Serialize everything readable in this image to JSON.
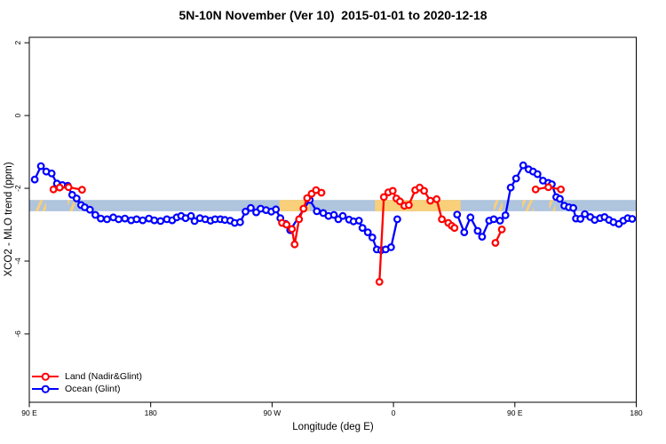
{
  "chart_data": {
    "type": "line",
    "title": "5N-10N November (Ver 10)  2015-01-01 to 2020-12-18",
    "xlabel": "Longitude (deg E)",
    "ylabel": "XCO2 - MLO trend (ppm)",
    "xlim": [
      90,
      540
    ],
    "ylim": [
      -7.88,
      2.15
    ],
    "grid": false,
    "legend_position": "bottom-left",
    "x_ticks": [
      {
        "pos": 90,
        "label": "90 E"
      },
      {
        "pos": 180,
        "label": "180"
      },
      {
        "pos": 270,
        "label": "90 W"
      },
      {
        "pos": 360,
        "label": "0"
      },
      {
        "pos": 450,
        "label": "90 E"
      },
      {
        "pos": 540,
        "label": "180"
      }
    ],
    "y_ticks": [
      {
        "pos": 2,
        "label": "2"
      },
      {
        "pos": 0,
        "label": "0"
      },
      {
        "pos": -2,
        "label": "-2"
      },
      {
        "pos": -4,
        "label": "-4"
      },
      {
        "pos": -6,
        "label": "-6"
      }
    ],
    "band": {
      "y0": -2.63,
      "y1": -2.32,
      "color": "#afc4dd"
    },
    "highlight_patches": {
      "color": "#f9cf7a",
      "ranges": [
        {
          "x0": 94.6,
          "x1": 102.6,
          "style": "hatch"
        },
        {
          "x0": 118.5,
          "x1": 123.8,
          "style": "hatch"
        },
        {
          "x0": 275.4,
          "x1": 297.9,
          "style": "solid"
        },
        {
          "x0": 346.3,
          "x1": 409.8,
          "style": "solid"
        },
        {
          "x0": 434.3,
          "x1": 440.9,
          "style": "hatch"
        },
        {
          "x0": 455.5,
          "x1": 464.1,
          "style": "hatch"
        },
        {
          "x0": 475.4,
          "x1": 480.1,
          "style": "hatch"
        }
      ]
    },
    "series": [
      {
        "name": "Land (Nadir&Glint)",
        "color": "#ff0000",
        "segments": [
          [
            [
              107.9,
              -2.03
            ],
            [
              112.5,
              -1.98
            ],
            [
              119.1,
              -1.97
            ],
            [
              129.1,
              -2.04
            ]
          ],
          [
            [
              277.4,
              -2.95
            ],
            [
              280.7,
              -3.0
            ],
            [
              284.7,
              -3.12
            ],
            [
              286.7,
              -3.54
            ],
            [
              290.0,
              -2.85
            ],
            [
              293.3,
              -2.56
            ],
            [
              296.0,
              -2.27
            ],
            [
              299.3,
              -2.15
            ],
            [
              302.6,
              -2.05
            ],
            [
              306.6,
              -2.12
            ]
          ],
          [
            [
              349.6,
              -4.57
            ],
            [
              352.9,
              -2.24
            ],
            [
              356.2,
              -2.11
            ],
            [
              359.5,
              -2.07
            ],
            [
              362.2,
              -2.28
            ],
            [
              364.8,
              -2.36
            ],
            [
              368.1,
              -2.48
            ],
            [
              371.4,
              -2.46
            ],
            [
              376.1,
              -2.05
            ],
            [
              379.4,
              -1.98
            ],
            [
              382.7,
              -2.07
            ],
            [
              387.3,
              -2.34
            ],
            [
              392.0,
              -2.3
            ],
            [
              395.9,
              -2.85
            ],
            [
              400.6,
              -2.95
            ],
            [
              403.2,
              -3.03
            ],
            [
              405.2,
              -3.09
            ]
          ],
          [
            [
              435.6,
              -3.5
            ],
            [
              440.3,
              -3.13
            ]
          ],
          [
            [
              465.4,
              -2.03
            ],
            [
              474.8,
              -1.97
            ],
            [
              484.1,
              -2.03
            ]
          ]
        ]
      },
      {
        "name": "Ocean (Glint)",
        "color": "#0000ff",
        "segments": [
          [
            [
              94.0,
              -1.76
            ],
            [
              98.6,
              -1.39
            ],
            [
              102.6,
              -1.54
            ],
            [
              106.6,
              -1.59
            ],
            [
              110.5,
              -1.87
            ],
            [
              114.5,
              -1.91
            ],
            [
              118.5,
              -1.93
            ],
            [
              121.8,
              -2.18
            ],
            [
              125.1,
              -2.28
            ],
            [
              128.4,
              -2.46
            ],
            [
              131.1,
              -2.52
            ],
            [
              135.0,
              -2.59
            ],
            [
              139.0,
              -2.73
            ],
            [
              143.0,
              -2.83
            ],
            [
              147.6,
              -2.85
            ],
            [
              152.3,
              -2.8
            ],
            [
              156.2,
              -2.85
            ],
            [
              160.9,
              -2.83
            ],
            [
              165.5,
              -2.88
            ],
            [
              169.5,
              -2.85
            ],
            [
              174.1,
              -2.88
            ],
            [
              178.7,
              -2.83
            ],
            [
              182.7,
              -2.88
            ],
            [
              187.3,
              -2.9
            ],
            [
              192.0,
              -2.85
            ],
            [
              195.9,
              -2.88
            ],
            [
              199.3,
              -2.8
            ],
            [
              202.6,
              -2.76
            ],
            [
              205.9,
              -2.82
            ],
            [
              209.9,
              -2.76
            ],
            [
              212.5,
              -2.9
            ],
            [
              216.5,
              -2.82
            ],
            [
              220.5,
              -2.85
            ],
            [
              224.4,
              -2.89
            ],
            [
              227.7,
              -2.85
            ],
            [
              231.7,
              -2.85
            ],
            [
              235.0,
              -2.87
            ],
            [
              239.0,
              -2.89
            ],
            [
              242.3,
              -2.95
            ],
            [
              246.3,
              -2.93
            ],
            [
              250.3,
              -2.64
            ],
            [
              254.2,
              -2.54
            ],
            [
              258.2,
              -2.66
            ],
            [
              261.5,
              -2.56
            ],
            [
              265.5,
              -2.6
            ],
            [
              269.5,
              -2.64
            ],
            [
              272.8,
              -2.58
            ],
            [
              276.1,
              -2.82
            ],
            [
              280.1,
              -2.98
            ],
            [
              283.4,
              -3.15
            ],
            [
              297.9,
              -2.32
            ],
            [
              303.2,
              -2.63
            ],
            [
              307.9,
              -2.68
            ],
            [
              311.8,
              -2.76
            ],
            [
              315.8,
              -2.73
            ],
            [
              319.1,
              -2.85
            ],
            [
              322.4,
              -2.76
            ],
            [
              327.1,
              -2.86
            ],
            [
              330.4,
              -2.91
            ],
            [
              334.4,
              -2.89
            ],
            [
              337.0,
              -3.09
            ],
            [
              341.0,
              -3.21
            ],
            [
              344.3,
              -3.35
            ],
            [
              347.6,
              -3.68
            ],
            [
              350.9,
              -3.7
            ],
            [
              354.2,
              -3.68
            ],
            [
              358.2,
              -3.62
            ],
            [
              362.8,
              -2.85
            ]
          ],
          [
            [
              407.2,
              -2.72
            ],
            [
              412.5,
              -3.21
            ],
            [
              417.1,
              -2.8
            ],
            [
              422.4,
              -3.17
            ],
            [
              425.7,
              -3.33
            ],
            [
              431.0,
              -2.89
            ],
            [
              434.3,
              -2.85
            ],
            [
              439.0,
              -2.89
            ],
            [
              443.0,
              -2.74
            ],
            [
              446.9,
              -1.98
            ],
            [
              450.9,
              -1.73
            ],
            [
              456.2,
              -1.37
            ],
            [
              460.2,
              -1.48
            ],
            [
              463.5,
              -1.54
            ],
            [
              466.8,
              -1.61
            ],
            [
              470.8,
              -1.79
            ],
            [
              474.8,
              -1.85
            ],
            [
              477.4,
              -1.89
            ],
            [
              480.7,
              -2.24
            ],
            [
              483.4,
              -2.29
            ],
            [
              486.7,
              -2.48
            ],
            [
              490.0,
              -2.52
            ],
            [
              493.3,
              -2.54
            ],
            [
              495.3,
              -2.83
            ],
            [
              498.6,
              -2.84
            ],
            [
              501.9,
              -2.71
            ],
            [
              505.9,
              -2.79
            ],
            [
              509.2,
              -2.87
            ],
            [
              513.2,
              -2.82
            ],
            [
              516.5,
              -2.79
            ],
            [
              519.8,
              -2.87
            ],
            [
              523.1,
              -2.93
            ],
            [
              527.1,
              -2.98
            ],
            [
              530.4,
              -2.89
            ],
            [
              533.7,
              -2.82
            ],
            [
              537.0,
              -2.84
            ]
          ]
        ]
      }
    ]
  }
}
